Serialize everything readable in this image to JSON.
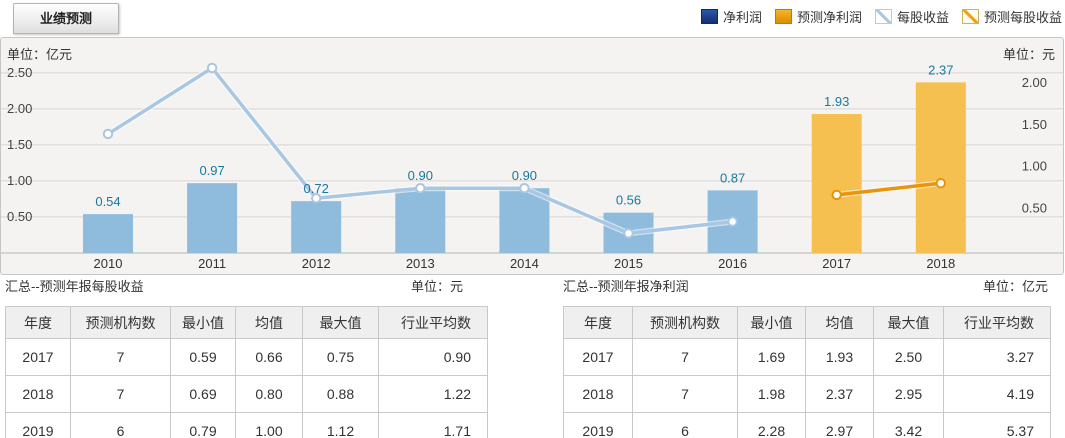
{
  "tab": {
    "label": "业绩预测"
  },
  "chart": {
    "left_unit": "单位：亿元",
    "right_unit": "单位：元"
  },
  "legend": [
    {
      "label": "净利润",
      "swatch": "bar",
      "color1": "#2b57a8",
      "color2": "#122f73",
      "border": "#10295f"
    },
    {
      "label": "预测净利润",
      "swatch": "bar",
      "color1": "#f7b429",
      "color2": "#d88d00",
      "border": "#bf7d00"
    },
    {
      "label": "每股收益",
      "swatch": "line",
      "fill": "#ffffff",
      "border": "#b9cbd9",
      "line": "#a9c7e3"
    },
    {
      "label": "预测每股收益",
      "swatch": "line",
      "fill": "#fffdf2",
      "border": "#cdb35c",
      "line": "#eda018"
    }
  ],
  "colors": {
    "net_profit_bar": "#8fbcdd",
    "forecast_net_profit_bar": "#f6c051",
    "eps_line": "#a9c7e3",
    "forecast_eps_line": "#e8940c",
    "value_label": "#17799f",
    "grid_line": "#d2d1d0",
    "axis_text": "#444444"
  },
  "chart_data": {
    "type": "bar+line",
    "title": "业绩预测",
    "categories": [
      "2010",
      "2011",
      "2012",
      "2013",
      "2014",
      "2015",
      "2016",
      "2017",
      "2018"
    ],
    "series": [
      {
        "name": "净利润",
        "type": "bar",
        "axis": "left",
        "unit": "亿元",
        "color": "#8fbcdd",
        "values": [
          0.54,
          0.97,
          0.72,
          0.9,
          0.9,
          0.56,
          0.87,
          null,
          null
        ]
      },
      {
        "name": "预测净利润",
        "type": "bar",
        "axis": "left",
        "unit": "亿元",
        "color": "#f6c051",
        "values": [
          null,
          null,
          null,
          null,
          null,
          null,
          null,
          1.93,
          2.37
        ]
      },
      {
        "name": "每股收益",
        "type": "line",
        "axis": "right",
        "unit": "元",
        "color": "#a9c7e3",
        "values": [
          1.39,
          2.18,
          0.62,
          0.74,
          0.74,
          0.2,
          0.34,
          null,
          null
        ]
      },
      {
        "name": "预测每股收益",
        "type": "line",
        "axis": "right",
        "unit": "元",
        "color": "#e8940c",
        "values": [
          null,
          null,
          null,
          null,
          null,
          null,
          null,
          0.66,
          0.8
        ]
      }
    ],
    "bar_value_labels": [
      "0.54",
      "0.97",
      "0.72",
      "0.90",
      "0.90",
      "0.56",
      "0.87",
      "1.93",
      "2.37"
    ],
    "left_axis": {
      "label": "单位：亿元",
      "ticks": [
        "0.50",
        "1.00",
        "1.50",
        "2.00",
        "2.50"
      ],
      "range": [
        0,
        2.68
      ]
    },
    "right_axis": {
      "label": "单位：元",
      "ticks": [
        "0.50",
        "1.00",
        "1.50",
        "2.00"
      ],
      "range": [
        0,
        2.32
      ]
    },
    "grid": true,
    "legend_position": "top-right"
  },
  "tables": [
    {
      "title": "汇总--预测年报每股收益",
      "unit": "单位：元",
      "headers": [
        "年度",
        "预测机构数",
        "最小值",
        "均值",
        "最大值",
        "行业平均数"
      ],
      "rows": [
        [
          "2017",
          "7",
          "0.59",
          "0.66",
          "0.75",
          "0.90"
        ],
        [
          "2018",
          "7",
          "0.69",
          "0.80",
          "0.88",
          "1.22"
        ],
        [
          "2019",
          "6",
          "0.79",
          "1.00",
          "1.12",
          "1.71"
        ]
      ]
    },
    {
      "title": "汇总--预测年报净利润",
      "unit": "单位：亿元",
      "headers": [
        "年度",
        "预测机构数",
        "最小值",
        "均值",
        "最大值",
        "行业平均数"
      ],
      "rows": [
        [
          "2017",
          "7",
          "1.69",
          "1.93",
          "2.50",
          "3.27"
        ],
        [
          "2018",
          "7",
          "1.98",
          "2.37",
          "2.95",
          "4.19"
        ],
        [
          "2019",
          "6",
          "2.28",
          "2.97",
          "3.42",
          "5.37"
        ]
      ]
    }
  ]
}
